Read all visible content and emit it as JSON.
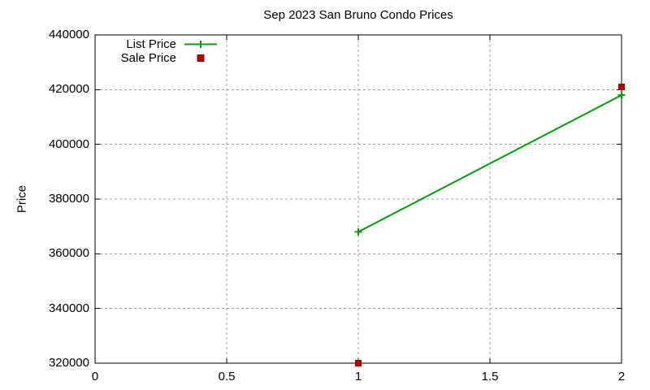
{
  "title": "Sep 2023 San Bruno Condo Prices",
  "ylabel": "Price",
  "legend": {
    "position": "top-left-inside",
    "items": [
      {
        "label": "List Price",
        "sample": "line-with-plus-marker",
        "color": "#00a000"
      },
      {
        "label": "Sale Price",
        "sample": "filled-square-marker",
        "color": "#b00000"
      }
    ]
  },
  "colors": {
    "list_price": "#00a000",
    "sale_price": "#b00000",
    "grid": "#a0a0a0",
    "border": "#000000",
    "background": "#ffffff",
    "text": "#000000"
  },
  "chart_data": {
    "type": "line",
    "title": "Sep 2023 San Bruno Condo Prices",
    "xlabel": "",
    "ylabel": "Price",
    "xlim": [
      0,
      2
    ],
    "ylim": [
      320000,
      440000
    ],
    "xticks": {
      "values": [
        0,
        0.5,
        1,
        1.5,
        2
      ],
      "labels": [
        "0",
        "0.5",
        "1",
        "1.5",
        "2"
      ]
    },
    "yticks": {
      "values": [
        320000,
        340000,
        360000,
        380000,
        400000,
        420000,
        440000
      ],
      "labels": [
        "320000",
        "340000",
        "360000",
        "380000",
        "400000",
        "420000",
        "440000"
      ]
    },
    "grid": true,
    "grid_style": "dotted-gray",
    "legend_position": "top-left-inside",
    "series": [
      {
        "name": "List Price",
        "style": "linespoints",
        "marker": "plus",
        "color": "#00a000",
        "x": [
          1,
          2
        ],
        "y": [
          368000,
          418000
        ]
      },
      {
        "name": "Sale Price",
        "style": "points",
        "marker": "square",
        "color": "#b00000",
        "x": [
          1,
          2
        ],
        "y": [
          320000,
          421000
        ]
      }
    ]
  }
}
